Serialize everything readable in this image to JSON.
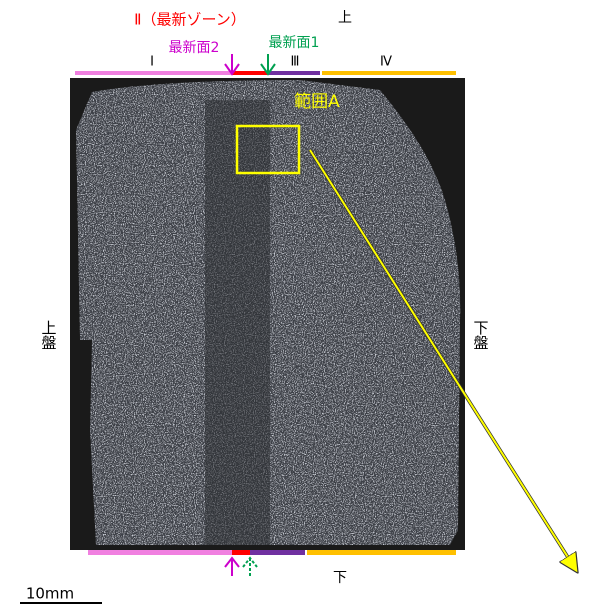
{
  "labels": {
    "zone2": "Ⅱ（最新ゾーン）",
    "top": "上",
    "surface2": "最新面2",
    "surface1": "最新面1",
    "zone1": "Ⅰ",
    "zone3": "Ⅲ",
    "zone4": "Ⅳ",
    "range": "範囲A",
    "hanging_wall": "上盤",
    "footwall": "下盤",
    "bottom": "下",
    "scale": "10mm"
  }
}
